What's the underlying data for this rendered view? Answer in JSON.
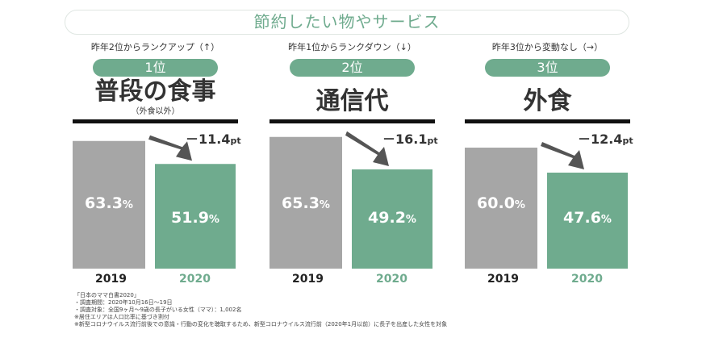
{
  "title": "節約したい物やサービス",
  "colors": {
    "accent": "#6fab8e",
    "bar_2019": "#a6a6a6",
    "bar_2020": "#6fab8e",
    "arrow": "#555555"
  },
  "chart_data": [
    {
      "type": "bar",
      "rank_change": "昨年2位からランクアップ（↑）",
      "rank": "1位",
      "item": "普段の食事",
      "item_note": "（外食以外）",
      "categories": [
        "2019",
        "2020"
      ],
      "values": [
        63.3,
        51.9
      ],
      "value_labels": [
        "63.3",
        "51.9"
      ],
      "unit": "%",
      "ylim": [
        0,
        100
      ],
      "delta": "－11.4",
      "delta_unit": "pt"
    },
    {
      "type": "bar",
      "rank_change": "昨年1位からランクダウン（↓）",
      "rank": "2位",
      "item": "通信代",
      "categories": [
        "2019",
        "2020"
      ],
      "values": [
        65.3,
        49.2
      ],
      "value_labels": [
        "65.3",
        "49.2"
      ],
      "unit": "%",
      "ylim": [
        0,
        100
      ],
      "delta": "－16.1",
      "delta_unit": "pt"
    },
    {
      "type": "bar",
      "rank_change": "昨年3位から変動なし（→）",
      "rank": "3位",
      "item": "外食",
      "categories": [
        "2019",
        "2020"
      ],
      "values": [
        60.0,
        47.6
      ],
      "value_labels": [
        "60.0",
        "47.6"
      ],
      "unit": "%",
      "ylim": [
        0,
        100
      ],
      "delta": "－12.4",
      "delta_unit": "pt"
    }
  ],
  "notes": [
    "「日本のママ白書2020」",
    "・調査期間：2020年10月16日～19日",
    "・調査対象：全国9ヶ月～9歳の長子がいる女性（ママ）：1,002名",
    "※居住エリアは人口比率に基づき割付",
    "※新型コロナウイルス流行前後での意識・行動の変化を聴取するため、新型コロナウイルス流行前（2020年1月以前）に長子を出産した女性を対象"
  ]
}
